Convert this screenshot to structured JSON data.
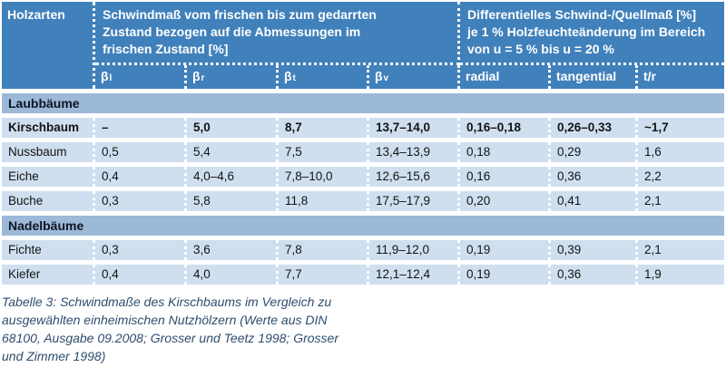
{
  "colors": {
    "header_blue": "#4181bb",
    "band_blue": "#9cb9d8",
    "row_blue": "#cfdff0",
    "caption_color": "#2e4d6e"
  },
  "header": {
    "col1": "Holzarten",
    "group1": "Schwindmaß vom frischen bis zum gedarrten\nZustand bezogen auf die Abmessungen im\nfrischen Zustand [%]",
    "group2": "Differentielles Schwind-/Quellmaß [%]\nje 1 % Holzfeuchteänderung im Bereich\nvon u = 5 % bis u = 20 %",
    "subcols": [
      {
        "base": "β",
        "sub": "l"
      },
      {
        "base": "β",
        "sub": "r"
      },
      {
        "base": "β",
        "sub": "t"
      },
      {
        "base": "β",
        "sub": "v"
      },
      {
        "label": "radial"
      },
      {
        "label": "tangential"
      },
      {
        "label": "t/r"
      }
    ]
  },
  "sections": [
    {
      "title": "Laubbäume",
      "rows": [
        {
          "name": "Kirschbaum",
          "bold": true,
          "values": [
            "–",
            "5,0",
            "8,7",
            "13,7–14,0",
            "0,16–0,18",
            "0,26–0,33",
            "~1,7"
          ]
        },
        {
          "name": "Nussbaum",
          "bold": false,
          "values": [
            "0,5",
            "5,4",
            "7,5",
            "13,4–13,9",
            "0,18",
            "0,29",
            "1,6"
          ]
        },
        {
          "name": "Eiche",
          "bold": false,
          "values": [
            "0,4",
            "4,0–4,6",
            "7,8–10,0",
            "12,6–15,6",
            "0,16",
            "0,36",
            "2,2"
          ]
        },
        {
          "name": "Buche",
          "bold": false,
          "values": [
            "0,3",
            "5,8",
            "11,8",
            "17,5–17,9",
            "0,20",
            "0,41",
            "2,1"
          ]
        }
      ]
    },
    {
      "title": "Nadelbäume",
      "rows": [
        {
          "name": "Fichte",
          "bold": false,
          "values": [
            "0,3",
            "3,6",
            "7,8",
            "11,9–12,0",
            "0,19",
            "0,39",
            "2,1"
          ]
        },
        {
          "name": "Kiefer",
          "bold": false,
          "values": [
            "0,4",
            "4,0",
            "7,7",
            "12,1–12,4",
            "0,19",
            "0,36",
            "1,9"
          ]
        }
      ]
    }
  ],
  "caption": "Tabelle 3: Schwindmaße des Kirschbaums im Vergleich zu\nausgewählten einheimischen Nutzhölzern (Werte aus DIN\n68100, Ausgabe 09.2008; Grosser und Teetz 1998; Grosser\nund Zimmer 1998)"
}
